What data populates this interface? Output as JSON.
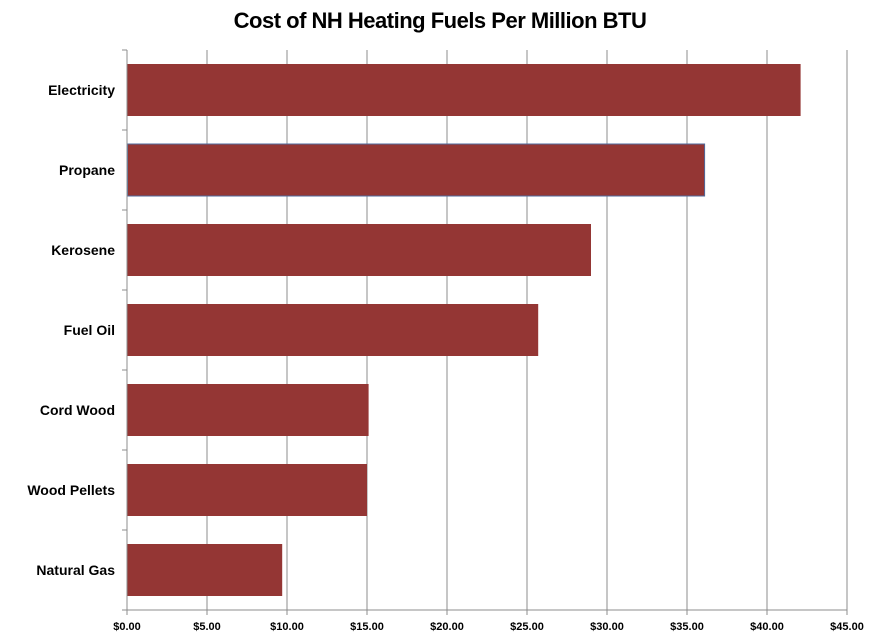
{
  "chart_data": {
    "type": "bar",
    "orientation": "horizontal",
    "title": "Cost of NH Heating Fuels Per Million BTU",
    "categories": [
      "Electricity",
      "Propane",
      "Kerosene",
      "Fuel Oil",
      "Cord Wood",
      "Wood Pellets",
      "Natural Gas"
    ],
    "values": [
      42.1,
      36.1,
      29.0,
      25.7,
      15.1,
      15.0,
      9.7
    ],
    "x_ticks": [
      "$0.00",
      "$5.00",
      "$10.00",
      "$15.00",
      "$20.00",
      "$25.00",
      "$30.00",
      "$35.00",
      "$40.00",
      "$45.00"
    ],
    "xlim": [
      0,
      45
    ],
    "grid": true,
    "bar_color": "#943634"
  }
}
